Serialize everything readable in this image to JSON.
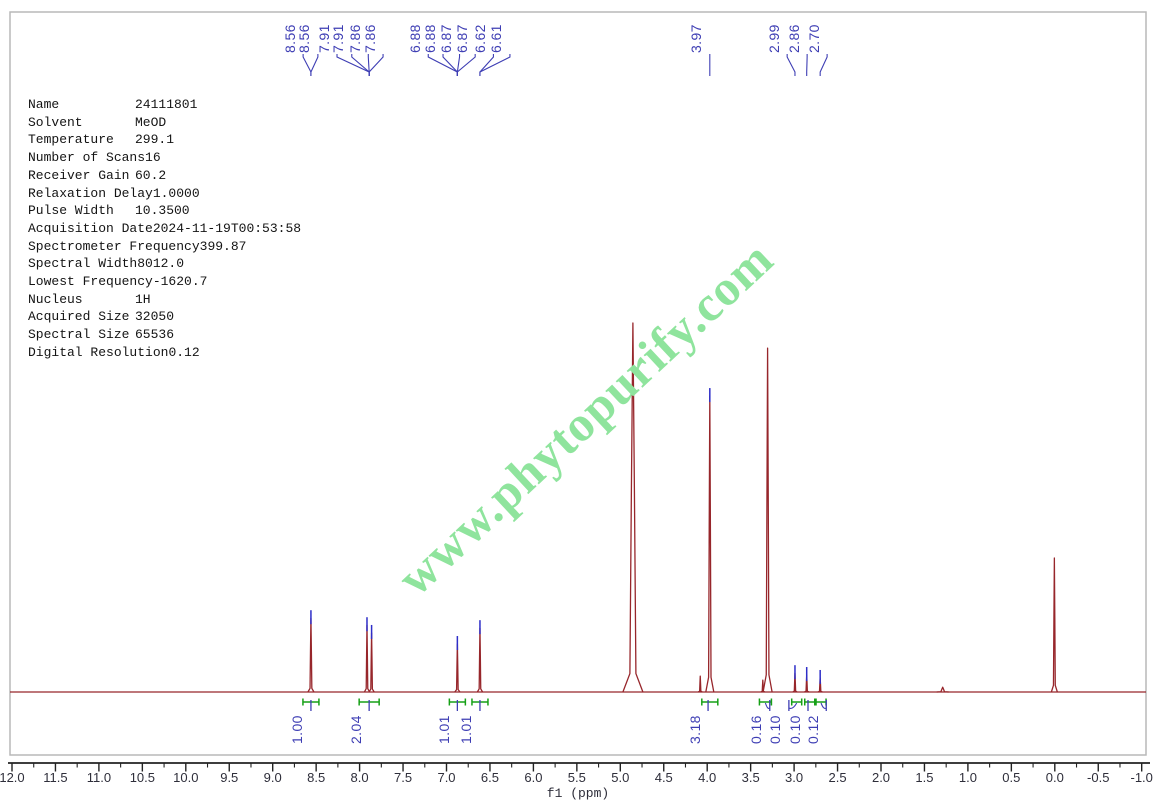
{
  "colors": {
    "spectrum_line": "#97262b",
    "peak_marker_blue": "#2e2ec8",
    "label_blue": "#3e3eb4",
    "integral_green": "#16a016",
    "axis_color": "#222222",
    "frame_gray": "#b9b9b9",
    "watermark_green": "#8fe49d"
  },
  "watermark": {
    "text": "www.phytopurify.com"
  },
  "params": {
    "rows": [
      {
        "label": "Name",
        "value": "24111801"
      },
      {
        "label": "Solvent",
        "value": "MeOD"
      },
      {
        "label": "Temperature",
        "value": "299.1"
      },
      {
        "label": "Number of Scans",
        "value": "16"
      },
      {
        "label": "Receiver Gain",
        "value": "60.2"
      },
      {
        "label": "Relaxation Delay",
        "value": "1.0000"
      },
      {
        "label": "Pulse Width",
        "value": "10.3500"
      },
      {
        "label": "Acquisition Date",
        "value": "2024-11-19T00:53:58"
      },
      {
        "label": "Spectrometer Frequency",
        "value": "399.87"
      },
      {
        "label": "Spectral Width",
        "value": "8012.0"
      },
      {
        "label": "Lowest Frequency",
        "value": "-1620.7"
      },
      {
        "label": "Nucleus",
        "value": "1H"
      },
      {
        "label": "Acquired Size",
        "value": "32050"
      },
      {
        "label": "Spectral Size",
        "value": "65536"
      },
      {
        "label": "Digital Resolution",
        "value": "0.12"
      }
    ]
  },
  "chart_data": {
    "type": "line",
    "kind": "1H NMR spectrum",
    "xlabel": "f1 (ppm)",
    "x_range": [
      12.0,
      -1.0
    ],
    "x_major_tick_step": 0.5,
    "x_tick_labels": [
      "12.0",
      "11.5",
      "11.0",
      "10.5",
      "10.0",
      "9.5",
      "9.0",
      "8.5",
      "8.0",
      "7.5",
      "7.0",
      "6.5",
      "6.0",
      "5.5",
      "5.0",
      "4.5",
      "4.0",
      "3.5",
      "3.0",
      "2.5",
      "2.0",
      "1.5",
      "1.0",
      "0.5",
      "0.0",
      "-0.5",
      "-1.0"
    ],
    "peaks": [
      {
        "ppm": 8.56,
        "intensity": 0.2,
        "w": 3.0,
        "marker": true
      },
      {
        "ppm": 7.915,
        "intensity": 0.181,
        "w": 2.6,
        "marker": true
      },
      {
        "ppm": 7.862,
        "intensity": 0.16,
        "w": 2.6,
        "marker": true
      },
      {
        "ppm": 6.875,
        "intensity": 0.13,
        "w": 2.6,
        "marker": true
      },
      {
        "ppm": 6.615,
        "intensity": 0.173,
        "w": 2.6,
        "marker": true
      },
      {
        "ppm": 4.855,
        "intensity": 1.0,
        "w": 10.0,
        "marker": false
      },
      {
        "ppm": 4.08,
        "intensity": 0.043,
        "w": 2.0,
        "marker": false
      },
      {
        "ppm": 3.97,
        "intensity": 0.802,
        "w": 4.0,
        "marker": true
      },
      {
        "ppm": 3.36,
        "intensity": 0.032,
        "w": 2.0,
        "marker": false
      },
      {
        "ppm": 3.305,
        "intensity": 0.932,
        "w": 4.5,
        "marker": false
      },
      {
        "ppm": 2.99,
        "intensity": 0.051,
        "w": 2.2,
        "marker": true
      },
      {
        "ppm": 2.855,
        "intensity": 0.046,
        "w": 2.2,
        "marker": true
      },
      {
        "ppm": 2.7,
        "intensity": 0.038,
        "w": 2.2,
        "marker": true
      },
      {
        "ppm": 1.29,
        "intensity": 0.013,
        "w": 6.0,
        "marker": false
      },
      {
        "ppm": 0.005,
        "intensity": 0.363,
        "w": 3.0,
        "marker": false
      }
    ],
    "peak_label_groups": [
      {
        "labels": [
          "8.56",
          "8.56"
        ],
        "label_ppms": [
          8.65,
          8.48
        ],
        "converge_ppm": 8.56
      },
      {
        "labels": [
          "7.91",
          "7.91",
          "7.86",
          "7.86"
        ],
        "label_ppms": [
          8.26,
          8.09,
          7.9,
          7.73
        ],
        "converge_ppm": 7.89
      },
      {
        "labels": [
          "6.88",
          "6.88",
          "6.87",
          "6.87"
        ],
        "label_ppms": [
          7.21,
          7.04,
          6.85,
          6.67
        ],
        "converge_ppm": 6.875
      },
      {
        "labels": [
          "6.62",
          "6.61"
        ],
        "label_ppms": [
          6.46,
          6.27
        ],
        "converge_ppm": 6.615
      },
      {
        "labels": [
          "3.97"
        ],
        "label_ppms": [
          3.97
        ],
        "converge_ppm": 3.97
      },
      {
        "labels": [
          "2.99"
        ],
        "label_ppms": [
          3.08
        ],
        "converge_ppm": 2.99
      },
      {
        "labels": [
          "2.86"
        ],
        "label_ppms": [
          2.85
        ],
        "converge_ppm": 2.855
      },
      {
        "labels": [
          "2.70"
        ],
        "label_ppms": [
          2.62
        ],
        "converge_ppm": 2.7
      }
    ],
    "integrals": [
      {
        "label": "1.00",
        "label_ppm": 8.56,
        "bracket_ppm": 8.56,
        "bracket_w": 16
      },
      {
        "label": "2.04",
        "label_ppm": 7.89,
        "bracket_ppm": 7.89,
        "bracket_w": 20
      },
      {
        "label": "1.01",
        "label_ppm": 6.875,
        "bracket_ppm": 6.875,
        "bracket_w": 16
      },
      {
        "label": "1.01",
        "label_ppm": 6.615,
        "bracket_ppm": 6.615,
        "bracket_w": 16
      },
      {
        "label": "3.18",
        "label_ppm": 3.99,
        "bracket_ppm": 3.97,
        "bracket_w": 16
      },
      {
        "label": "0.16",
        "label_ppm": 3.28,
        "bracket_ppm": 3.33,
        "bracket_w": 12
      },
      {
        "label": "0.10",
        "label_ppm": 3.06,
        "bracket_ppm": 2.97,
        "bracket_w": 10
      },
      {
        "label": "0.10",
        "label_ppm": 2.84,
        "bracket_ppm": 2.82,
        "bracket_w": 10
      },
      {
        "label": "0.12",
        "label_ppm": 2.63,
        "bracket_ppm": 2.69,
        "bracket_w": 10
      }
    ]
  }
}
